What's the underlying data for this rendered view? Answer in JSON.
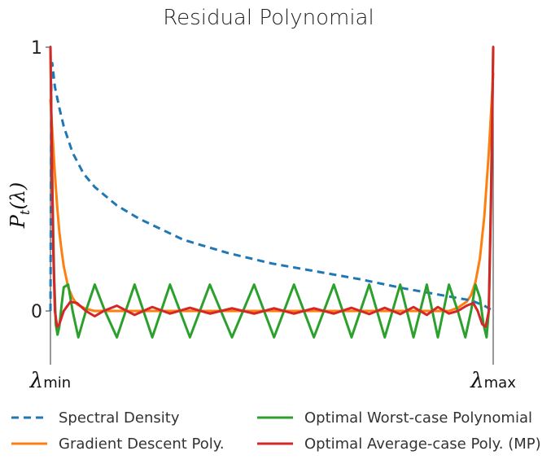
{
  "chart_data": {
    "type": "line",
    "title": "Residual Polynomial",
    "ylabel": "P_t(λ)",
    "ylabel_main": "P",
    "ylabel_sub": "t",
    "ylabel_paren": "(λ)",
    "xlabel": "",
    "xlim": [
      0,
      1
    ],
    "ylim": [
      -0.2,
      1.0
    ],
    "yticks": [
      {
        "value": 0,
        "label": "0"
      },
      {
        "value": 1,
        "label": "1"
      }
    ],
    "xticks": [
      {
        "value": 0,
        "main": "λ",
        "sub": "min"
      },
      {
        "value": 1,
        "main": "λ",
        "sub": "max"
      }
    ],
    "grid": false,
    "legend_placement": "bottom",
    "series": [
      {
        "name": "Spectral Density",
        "color": "#1f77b4",
        "dash": "dashed",
        "x": [
          0.0,
          0.002,
          0.004,
          0.006,
          0.01,
          0.02,
          0.03,
          0.05,
          0.075,
          0.1,
          0.15,
          0.2,
          0.25,
          0.3,
          0.4,
          0.5,
          0.6,
          0.7,
          0.8,
          0.85,
          0.9,
          0.95,
          0.98,
          1.0
        ],
        "y": [
          0.0,
          0.92,
          0.94,
          0.91,
          0.85,
          0.77,
          0.7,
          0.6,
          0.52,
          0.47,
          0.4,
          0.35,
          0.31,
          0.27,
          0.22,
          0.18,
          0.15,
          0.12,
          0.085,
          0.07,
          0.055,
          0.04,
          0.02,
          0.0
        ]
      },
      {
        "name": "Gradient Descent Poly.",
        "color": "#ff7f0e",
        "dash": "solid",
        "x": [
          0.0,
          0.005,
          0.01,
          0.015,
          0.02,
          0.025,
          0.03,
          0.04,
          0.05,
          0.06,
          0.08,
          0.1,
          0.5,
          0.9,
          0.92,
          0.94,
          0.95,
          0.96,
          0.97,
          0.98,
          0.99,
          1.0
        ],
        "y": [
          0.8,
          0.66,
          0.52,
          0.4,
          0.3,
          0.23,
          0.17,
          0.09,
          0.05,
          0.025,
          0.008,
          0.0,
          0.0,
          0.0,
          0.012,
          0.035,
          0.06,
          0.11,
          0.2,
          0.36,
          0.6,
          0.9
        ]
      },
      {
        "name": "Optimal Worst-case Polynomial",
        "color": "#2ca02c",
        "dash": "solid",
        "x": [
          0.0,
          0.004,
          0.008,
          0.012,
          0.016,
          0.02,
          0.025,
          0.03,
          0.04,
          0.05,
          0.063,
          0.08,
          0.1,
          0.123,
          0.15,
          0.19,
          0.23,
          0.27,
          0.315,
          0.36,
          0.41,
          0.46,
          0.505,
          0.55,
          0.595,
          0.64,
          0.68,
          0.72,
          0.755,
          0.79,
          0.82,
          0.85,
          0.875,
          0.9,
          0.92,
          0.937,
          0.95,
          0.96,
          0.97,
          0.978,
          0.985,
          0.99,
          0.995,
          1.0
        ],
        "y": [
          1.0,
          0.5,
          0.15,
          -0.05,
          -0.09,
          -0.06,
          0.02,
          0.09,
          0.1,
          0.0,
          -0.1,
          0.0,
          0.1,
          0.0,
          -0.1,
          0.1,
          -0.1,
          0.1,
          -0.1,
          0.1,
          -0.1,
          0.1,
          -0.1,
          0.1,
          -0.1,
          0.1,
          -0.1,
          0.1,
          -0.1,
          0.1,
          -0.1,
          0.1,
          -0.1,
          0.1,
          0.0,
          -0.1,
          0.0,
          0.1,
          0.05,
          -0.05,
          -0.1,
          0.0,
          0.45,
          1.0
        ]
      },
      {
        "name": "Optimal Average-case Poly. (MP)",
        "color": "#d62728",
        "dash": "solid",
        "x": [
          0.0,
          0.003,
          0.006,
          0.01,
          0.015,
          0.02,
          0.03,
          0.045,
          0.06,
          0.08,
          0.1,
          0.12,
          0.15,
          0.19,
          0.23,
          0.27,
          0.315,
          0.36,
          0.41,
          0.46,
          0.505,
          0.55,
          0.595,
          0.64,
          0.68,
          0.72,
          0.755,
          0.79,
          0.82,
          0.85,
          0.875,
          0.9,
          0.92,
          0.94,
          0.955,
          0.965,
          0.975,
          0.983,
          0.99,
          0.995,
          1.0
        ],
        "y": [
          1.0,
          0.6,
          0.25,
          0.0,
          -0.06,
          -0.05,
          0.0,
          0.035,
          0.03,
          0.0,
          -0.02,
          0.0,
          0.02,
          -0.015,
          0.015,
          -0.01,
          0.012,
          -0.01,
          0.01,
          -0.01,
          0.01,
          -0.01,
          0.01,
          -0.01,
          0.012,
          -0.012,
          0.012,
          -0.012,
          0.015,
          -0.015,
          0.015,
          -0.01,
          0.0,
          0.02,
          0.03,
          0.0,
          -0.05,
          -0.06,
          0.0,
          0.4,
          1.0
        ]
      }
    ]
  }
}
